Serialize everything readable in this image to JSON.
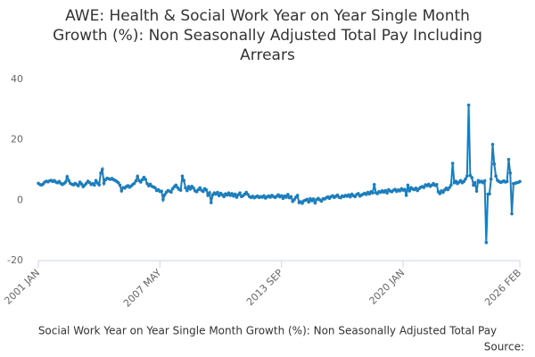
{
  "chart_data": {
    "type": "line",
    "title": [
      "AWE: Health & Social Work Year on Year Single Month",
      "Growth (%): Non Seasonally Adjusted Total Pay Including",
      "Arrears"
    ],
    "footer": "Social Work Year on Year Single Month Growth (%): Non Seasonally Adjusted Total Pay",
    "source": "Source:",
    "x": [
      "2001 JAN",
      "2001 FEB",
      "2001 MAR",
      "2001 APR",
      "2001 MAY",
      "2001 JUN",
      "2001 JUL",
      "2001 AUG",
      "2001 SEP",
      "2001 OCT",
      "2001 NOV",
      "2001 DEC",
      "2002 JAN",
      "2002 FEB",
      "2002 MAR",
      "2002 APR",
      "2002 MAY",
      "2002 JUN",
      "2002 JUL",
      "2002 AUG",
      "2002 SEP",
      "2002 OCT",
      "2002 NOV",
      "2002 DEC",
      "2003 JAN",
      "2003 FEB",
      "2003 MAR",
      "2003 APR",
      "2003 MAY",
      "2003 JUN",
      "2003 JUL",
      "2003 AUG",
      "2003 SEP",
      "2003 OCT",
      "2003 NOV",
      "2003 DEC",
      "2004 JAN",
      "2004 FEB",
      "2004 MAR",
      "2004 APR",
      "2004 MAY",
      "2004 JUN",
      "2004 JUL",
      "2004 AUG",
      "2004 SEP",
      "2004 OCT",
      "2004 NOV",
      "2004 DEC",
      "2005 JAN",
      "2005 FEB",
      "2005 MAR",
      "2005 APR",
      "2005 MAY",
      "2005 JUN",
      "2005 JUL",
      "2005 AUG",
      "2005 SEP",
      "2005 OCT",
      "2005 NOV",
      "2005 DEC",
      "2006 JAN",
      "2006 FEB",
      "2006 MAR",
      "2006 APR",
      "2006 MAY",
      "2006 JUN",
      "2006 JUL",
      "2006 AUG",
      "2006 SEP",
      "2006 OCT",
      "2006 NOV",
      "2006 DEC",
      "2007 JAN",
      "2007 FEB",
      "2007 MAR",
      "2007 APR",
      "2007 MAY",
      "2007 JUN",
      "2007 JUL",
      "2007 AUG",
      "2007 SEP",
      "2007 OCT",
      "2007 NOV",
      "2007 DEC",
      "2008 JAN",
      "2008 FEB",
      "2008 MAR",
      "2008 APR",
      "2008 MAY",
      "2008 JUN",
      "2008 JUL",
      "2008 AUG",
      "2008 SEP",
      "2008 OCT",
      "2008 NOV",
      "2008 DEC",
      "2009 JAN",
      "2009 FEB",
      "2009 MAR",
      "2009 APR",
      "2009 MAY",
      "2009 JUN",
      "2009 JUL",
      "2009 AUG",
      "2009 SEP",
      "2009 OCT",
      "2009 NOV",
      "2009 DEC",
      "2010 JAN",
      "2010 FEB",
      "2010 MAR",
      "2010 APR",
      "2010 MAY",
      "2010 JUN",
      "2010 JUL",
      "2010 AUG",
      "2010 SEP",
      "2010 OCT",
      "2010 NOV",
      "2010 DEC",
      "2011 JAN",
      "2011 FEB",
      "2011 MAR",
      "2011 APR",
      "2011 MAY",
      "2011 JUN",
      "2011 JUL",
      "2011 AUG",
      "2011 SEP",
      "2011 OCT",
      "2011 NOV",
      "2011 DEC",
      "2012 JAN",
      "2012 FEB",
      "2012 MAR",
      "2012 APR",
      "2012 MAY",
      "2012 JUN",
      "2012 JUL",
      "2012 AUG",
      "2012 SEP",
      "2012 OCT",
      "2012 NOV",
      "2012 DEC",
      "2013 JAN",
      "2013 FEB",
      "2013 MAR",
      "2013 APR",
      "2013 MAY",
      "2013 JUN",
      "2013 JUL",
      "2013 AUG",
      "2013 SEP",
      "2013 OCT",
      "2013 NOV",
      "2013 DEC",
      "2014 JAN",
      "2014 FEB",
      "2014 MAR",
      "2014 APR",
      "2014 MAY",
      "2014 JUN",
      "2014 JUL",
      "2014 AUG",
      "2014 SEP",
      "2014 OCT",
      "2014 NOV",
      "2014 DEC",
      "2015 JAN",
      "2015 FEB",
      "2015 MAR",
      "2015 APR",
      "2015 MAY",
      "2015 JUN",
      "2015 JUL",
      "2015 AUG",
      "2015 SEP",
      "2015 OCT",
      "2015 NOV",
      "2015 DEC",
      "2016 JAN",
      "2016 FEB",
      "2016 MAR",
      "2016 APR",
      "2016 MAY",
      "2016 JUN",
      "2016 JUL",
      "2016 AUG",
      "2016 SEP",
      "2016 OCT",
      "2016 NOV",
      "2016 DEC",
      "2017 JAN",
      "2017 FEB",
      "2017 MAR",
      "2017 APR",
      "2017 MAY",
      "2017 JUN",
      "2017 JUL",
      "2017 AUG",
      "2017 SEP",
      "2017 OCT",
      "2017 NOV",
      "2017 DEC",
      "2018 JAN",
      "2018 FEB",
      "2018 MAR",
      "2018 APR",
      "2018 MAY",
      "2018 JUN",
      "2018 JUL",
      "2018 AUG",
      "2018 SEP",
      "2018 OCT",
      "2018 NOV",
      "2018 DEC",
      "2019 JAN",
      "2019 FEB",
      "2019 MAR",
      "2019 APR",
      "2019 MAY",
      "2019 JUN",
      "2019 JUL",
      "2019 AUG",
      "2019 SEP",
      "2019 OCT",
      "2019 NOV",
      "2019 DEC",
      "2020 JAN",
      "2020 FEB",
      "2020 MAR",
      "2020 APR",
      "2020 MAY",
      "2020 JUN",
      "2020 JUL",
      "2020 AUG",
      "2020 SEP",
      "2020 OCT",
      "2020 NOV",
      "2020 DEC",
      "2021 JAN",
      "2021 FEB",
      "2021 MAR",
      "2021 APR",
      "2021 MAY",
      "2021 JUN",
      "2021 JUL",
      "2021 AUG",
      "2021 SEP",
      "2021 OCT",
      "2021 NOV",
      "2021 DEC",
      "2022 JAN",
      "2022 FEB",
      "2022 MAR",
      "2022 APR",
      "2022 MAY",
      "2022 JUN",
      "2022 JUL",
      "2022 AUG",
      "2022 SEP",
      "2022 OCT",
      "2022 NOV",
      "2022 DEC",
      "2023 JAN",
      "2023 FEB",
      "2023 MAR",
      "2023 APR",
      "2023 MAY",
      "2023 JUN",
      "2023 JUL",
      "2023 AUG",
      "2023 SEP",
      "2023 OCT",
      "2023 NOV",
      "2023 DEC",
      "2024 JAN",
      "2024 FEB",
      "2024 MAR",
      "2024 APR",
      "2024 MAY",
      "2024 JUN",
      "2024 JUL",
      "2024 AUG",
      "2024 SEP",
      "2024 OCT",
      "2024 NOV",
      "2024 DEC",
      "2025 JAN",
      "2025 FEB",
      "2025 MAR",
      "2025 APR",
      "2025 MAY",
      "2025 JUN",
      "2025 JUL",
      "2025 AUG",
      "2025 SEP",
      "2025 OCT",
      "2025 NOV",
      "2025 DEC",
      "2026 JAN",
      "2026 FEB"
    ],
    "series": [
      {
        "color": "#1a7dbd",
        "values": [
          5.6,
          5.2,
          5.0,
          5.4,
          6.0,
          6.3,
          6.1,
          6.4,
          6.6,
          6.2,
          6.5,
          6.0,
          5.8,
          6.2,
          5.6,
          5.2,
          5.5,
          6.0,
          7.8,
          6.5,
          5.6,
          5.3,
          5.1,
          5.6,
          5.2,
          4.8,
          6.0,
          5.4,
          4.5,
          5.0,
          5.6,
          6.3,
          5.9,
          5.2,
          5.5,
          5.0,
          6.5,
          5.7,
          5.1,
          9.0,
          10.2,
          5.6,
          6.8,
          7.3,
          7.1,
          6.9,
          7.2,
          6.8,
          6.6,
          6.2,
          5.8,
          5.0,
          3.1,
          4.2,
          4.0,
          4.5,
          4.8,
          4.3,
          4.7,
          5.2,
          5.6,
          6.4,
          7.9,
          6.5,
          6.0,
          6.8,
          7.6,
          6.9,
          5.5,
          4.8,
          5.3,
          4.6,
          4.4,
          4.1,
          3.2,
          3.5,
          2.9,
          3.0,
          0.2,
          1.8,
          2.6,
          3.2,
          3.0,
          2.7,
          3.8,
          4.5,
          5.0,
          4.2,
          3.6,
          3.3,
          8.0,
          6.5,
          4.1,
          3.2,
          4.5,
          3.7,
          4.6,
          4.0,
          3.1,
          2.8,
          3.5,
          4.1,
          3.3,
          2.9,
          3.8,
          3.4,
          1.6,
          2.5,
          -0.8,
          1.8,
          2.4,
          2.0,
          2.6,
          1.5,
          2.3,
          1.8,
          1.2,
          2.1,
          1.7,
          2.4,
          1.6,
          2.2,
          1.4,
          2.0,
          1.0,
          1.8,
          2.4,
          1.2,
          1.5,
          2.0,
          2.6,
          1.9,
          1.2,
          0.9,
          1.3,
          0.8,
          1.1,
          1.4,
          0.9,
          1.2,
          1.0,
          1.5,
          0.7,
          1.1,
          1.4,
          1.0,
          1.6,
          1.2,
          0.9,
          1.3,
          1.8,
          1.1,
          1.5,
          0.6,
          1.4,
          1.0,
          1.9,
          0.8,
          1.2,
          -0.4,
          0.2,
          1.0,
          1.6,
          -0.8,
          -0.5,
          -1.0,
          -0.2,
          0.0,
          0.3,
          -0.6,
          0.5,
          -0.2,
          0.4,
          -0.9,
          0.2,
          0.6,
          0.1,
          -0.3,
          0.5,
          0.4,
          0.8,
          1.1,
          0.6,
          1.2,
          1.5,
          0.9,
          1.3,
          1.7,
          1.0,
          0.8,
          1.4,
          1.2,
          1.6,
          1.3,
          1.8,
          1.1,
          2.0,
          1.5,
          1.2,
          1.9,
          2.2,
          1.4,
          1.7,
          2.0,
          2.3,
          1.9,
          2.6,
          2.1,
          2.8,
          2.4,
          5.2,
          2.5,
          2.2,
          2.9,
          2.6,
          3.1,
          2.7,
          3.2,
          2.4,
          3.5,
          3.0,
          2.8,
          3.3,
          3.6,
          2.9,
          3.4,
          3.1,
          3.8,
          3.3,
          3.6,
          1.6,
          5.0,
          3.1,
          4.2,
          3.7,
          3.5,
          4.0,
          3.2,
          3.8,
          4.3,
          4.5,
          4.2,
          5.1,
          4.8,
          5.3,
          4.6,
          5.0,
          5.5,
          4.9,
          5.2,
          2.8,
          2.2,
          3.1,
          2.6,
          3.4,
          4.0,
          3.5,
          4.2,
          5.0,
          12.2,
          5.8,
          6.3,
          5.5,
          6.0,
          6.5,
          5.8,
          6.2,
          7.0,
          8.0,
          31.5,
          8.2,
          7.5,
          5.0,
          5.8,
          3.0,
          6.5,
          6.0,
          6.3,
          5.8,
          6.4,
          -14.0,
          2.0,
          2.1,
          7.0,
          18.5,
          12.0,
          8.0,
          6.6,
          6.2,
          5.9,
          6.1,
          6.4,
          6.0,
          6.2,
          13.5,
          9.0,
          -4.5,
          5.5,
          5.6,
          5.8,
          5.9,
          6.2
        ]
      }
    ],
    "xticks": [
      "2001 JAN",
      "2007 MAY",
      "2013 SEP",
      "2020 JAN",
      "2026 FEB"
    ],
    "ylim": [
      -20,
      40
    ],
    "yticks": [
      -20,
      0,
      20,
      40
    ],
    "grid": false
  }
}
